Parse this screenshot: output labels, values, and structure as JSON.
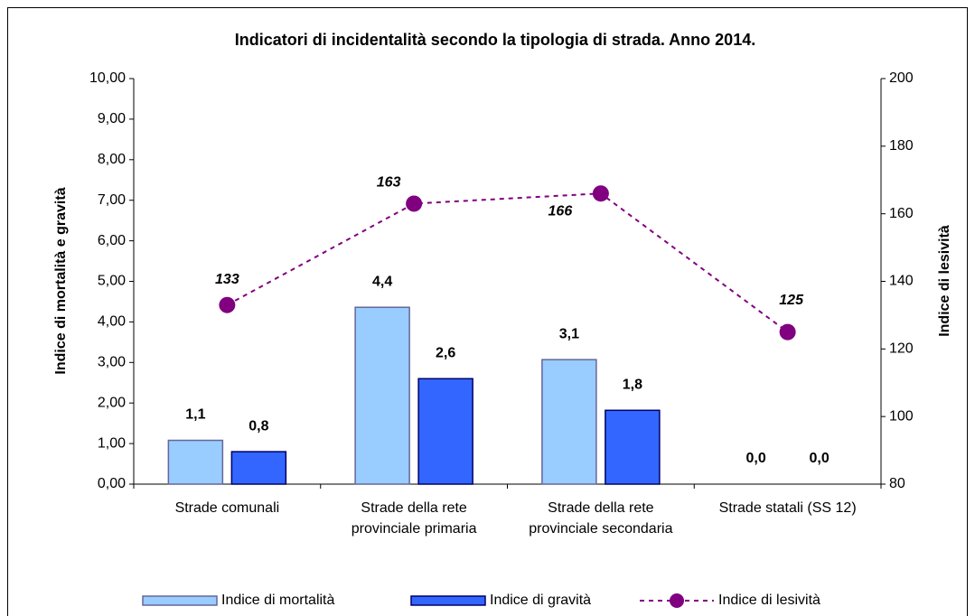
{
  "chart_data": {
    "type": "bar",
    "title": "Indicatori di incidentalità secondo la tipologia di strada. Anno 2014.",
    "categories": [
      [
        "Strade comunali"
      ],
      [
        "Strade della rete",
        "provinciale primaria"
      ],
      [
        "Strade della rete",
        "provinciale secondaria"
      ],
      [
        "Strade statali (SS 12)"
      ]
    ],
    "ylabel": "Indice di mortalità e gravità",
    "y2label": "Indice di lesività",
    "ylim": [
      0,
      10
    ],
    "yticks": [
      {
        "value": 0,
        "label": "0,00"
      },
      {
        "value": 1,
        "label": "1,00"
      },
      {
        "value": 2,
        "label": "2,00"
      },
      {
        "value": 3,
        "label": "3,00"
      },
      {
        "value": 4,
        "label": "4,00"
      },
      {
        "value": 5,
        "label": "5,00"
      },
      {
        "value": 6,
        "label": "6,00"
      },
      {
        "value": 7,
        "label": "7,00"
      },
      {
        "value": 8,
        "label": "8,00"
      },
      {
        "value": 9,
        "label": "9,00"
      },
      {
        "value": 10,
        "label": "10,00"
      }
    ],
    "y2lim": [
      80,
      200
    ],
    "y2ticks": [
      80,
      100,
      120,
      140,
      160,
      180,
      200
    ],
    "series": [
      {
        "name": "Indice di mortalità",
        "color": "#99ccff",
        "values": [
          1.08,
          4.36,
          3.07,
          0
        ],
        "value_labels": [
          "1,1",
          "4,4",
          "3,1",
          "0,0"
        ]
      },
      {
        "name": "Indice di gravità",
        "color": "#3366ff",
        "values": [
          0.8,
          2.6,
          1.82,
          0
        ],
        "value_labels": [
          "0,8",
          "2,6",
          "1,8",
          "0,0"
        ]
      },
      {
        "name": "Indice di lesività",
        "color": "#800080",
        "axis": "y2",
        "type": "line",
        "values": [
          133,
          163,
          166,
          125
        ]
      }
    ]
  }
}
